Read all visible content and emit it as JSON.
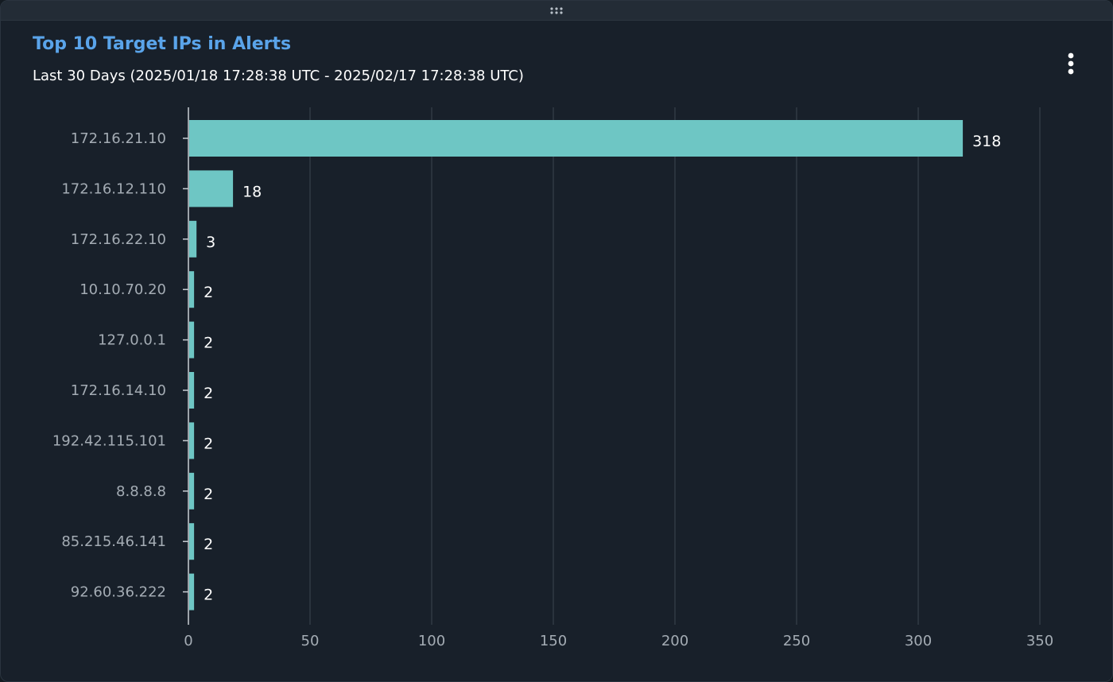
{
  "panel": {
    "title": "Top 10 Target IPs in Alerts",
    "subtitle": "Last 30 Days (2025/01/18 17:28:38 UTC - 2025/02/17 17:28:38 UTC)",
    "menu_icon": "more-vertical-icon",
    "drag_icon": "drag-handle-icon"
  },
  "colors": {
    "bar": "#6ec6c4",
    "title": "#5aa4ea",
    "grid": "#3d4650",
    "axis_text": "#a4acb4",
    "value_text": "#ffffff"
  },
  "chart_data": {
    "type": "bar",
    "orientation": "horizontal",
    "categories": [
      "172.16.21.10",
      "172.16.12.110",
      "172.16.22.10",
      "10.10.70.20",
      "127.0.0.1",
      "172.16.14.10",
      "192.42.115.101",
      "8.8.8.8",
      "85.215.46.141",
      "92.60.36.222"
    ],
    "values": [
      318,
      18,
      3,
      2,
      2,
      2,
      2,
      2,
      2,
      2
    ],
    "x_ticks": [
      0,
      50,
      100,
      150,
      200,
      250,
      300,
      350
    ],
    "xlim": [
      0,
      350
    ],
    "title": "Top 10 Target IPs in Alerts",
    "grid": true,
    "data_labels": true
  }
}
